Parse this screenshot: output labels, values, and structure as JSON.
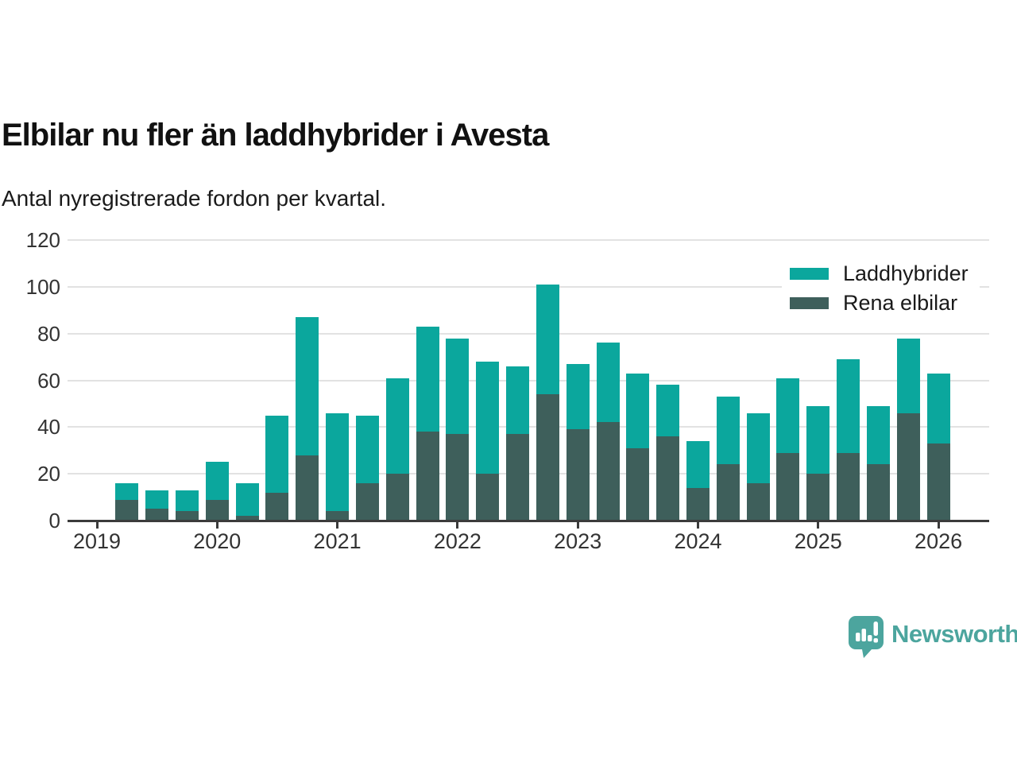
{
  "header": {
    "title": "Elbilar nu fler än laddhybrider i Avesta",
    "subtitle": "Antal nyregistrerade fordon per kvartal."
  },
  "chart_data": {
    "type": "bar",
    "stacked": true,
    "title": "Elbilar nu fler än laddhybrider i Avesta",
    "subtitle": "Antal nyregistrerade fordon per kvartal.",
    "categories": [
      "2019 Q1",
      "2019 Q2",
      "2019 Q3",
      "2019 Q4",
      "2020 Q1",
      "2020 Q2",
      "2020 Q3",
      "2020 Q4",
      "2021 Q1",
      "2021 Q2",
      "2021 Q3",
      "2021 Q4",
      "2022 Q1",
      "2022 Q2",
      "2022 Q3",
      "2022 Q4",
      "2023 Q1",
      "2023 Q2",
      "2023 Q3",
      "2023 Q4",
      "2024 Q1",
      "2024 Q2",
      "2024 Q3",
      "2024 Q4",
      "2025 Q1",
      "2025 Q2",
      "2025 Q3",
      "2025 Q4"
    ],
    "series": [
      {
        "name": "Laddhybrider",
        "color": "#0ba79d",
        "stack_position": "top",
        "values": [
          7,
          8,
          9,
          16,
          14,
          33,
          59,
          42,
          29,
          41,
          45,
          41,
          48,
          29,
          47,
          28,
          34,
          32,
          22,
          20,
          29,
          30,
          32,
          29,
          40,
          25,
          32,
          30
        ]
      },
      {
        "name": "Rena elbilar",
        "color": "#3e5f5b",
        "stack_position": "bottom",
        "values": [
          9,
          5,
          4,
          9,
          2,
          12,
          28,
          4,
          16,
          20,
          38,
          37,
          20,
          37,
          54,
          39,
          42,
          31,
          36,
          14,
          24,
          16,
          29,
          20,
          29,
          24,
          46,
          33
        ]
      }
    ],
    "totals": [
      16,
      13,
      13,
      25,
      16,
      45,
      87,
      46,
      45,
      61,
      83,
      78,
      68,
      66,
      101,
      67,
      76,
      63,
      58,
      34,
      53,
      46,
      61,
      49,
      69,
      49,
      78,
      63
    ],
    "ylim": [
      0,
      120
    ],
    "yticks": [
      0,
      20,
      40,
      60,
      80,
      100,
      120
    ],
    "xticks": [
      "2019",
      "2020",
      "2021",
      "2022",
      "2023",
      "2024",
      "2025",
      "2026"
    ],
    "xlabel": "",
    "ylabel": "",
    "grid": true,
    "legend_position": "top-right",
    "colors": {
      "gridline": "#e2e2e2",
      "axis": "#3b3b3b",
      "tick_label": "#333333"
    }
  },
  "footer": {
    "brand": "Newsworthy",
    "brand_color": "#4ca59e",
    "logo_icon": "bar-chart-speech-bubble-icon"
  }
}
